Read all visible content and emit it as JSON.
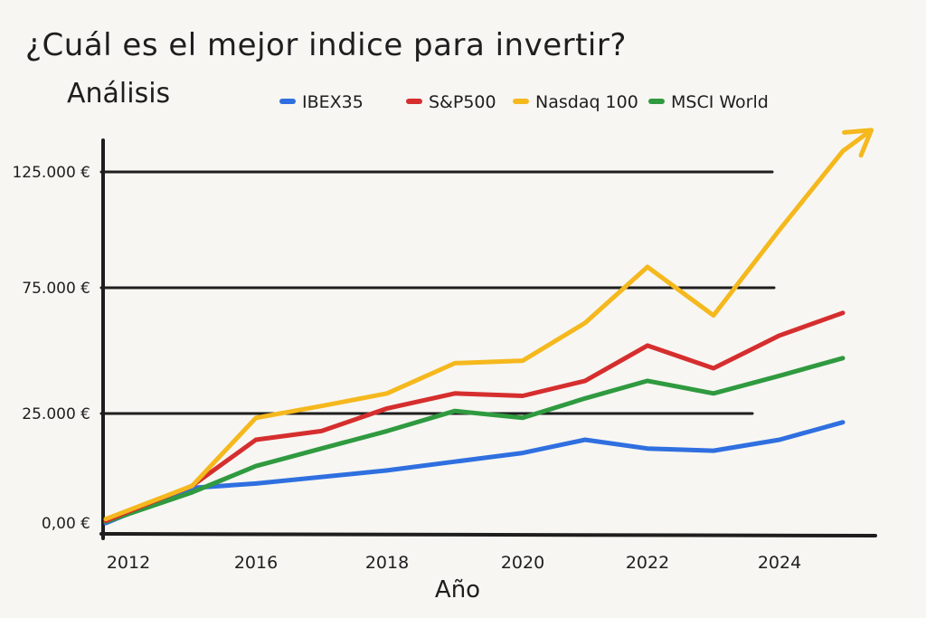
{
  "chart_data": {
    "type": "line",
    "title": "¿Cuál es el mejor indice para invertir?",
    "subtitle": "Análisis",
    "xlabel": "Año",
    "ylabel": "",
    "x_ticks": [
      "2012",
      "2016",
      "2018",
      "2020",
      "2022",
      "2024"
    ],
    "y_ticks": [
      "0,00 €",
      "25.000 €",
      "75.000 €",
      "125.000 €"
    ],
    "y_tick_values": [
      0,
      25000,
      75000,
      125000
    ],
    "xlim": [
      2011.5,
      2025.6
    ],
    "series": [
      {
        "name": "IBEX35",
        "color": "#2f6fe0",
        "x": [
          2011.5,
          2014,
          2016,
          2018,
          2019,
          2020,
          2021,
          2022,
          2023,
          2024,
          2025
        ],
        "y": [
          0,
          8000,
          9000,
          12000,
          14000,
          16000,
          19000,
          17000,
          16500,
          19000,
          23000
        ]
      },
      {
        "name": "S&P500",
        "color": "#d62e2e",
        "x": [
          2011.5,
          2014,
          2016,
          2017,
          2018,
          2019,
          2020,
          2021,
          2022,
          2023,
          2024,
          2025
        ],
        "y": [
          500,
          8500,
          19000,
          21000,
          27000,
          33000,
          32000,
          38000,
          52000,
          43000,
          56000,
          65000
        ]
      },
      {
        "name": "Nasdaq 100",
        "color": "#f5b81d",
        "x": [
          2011.5,
          2014,
          2016,
          2017,
          2018,
          2019,
          2020,
          2021,
          2022,
          2023,
          2024,
          2025,
          2025.45
        ],
        "y": [
          900,
          8500,
          24000,
          28000,
          33000,
          45000,
          46000,
          61000,
          84000,
          64000,
          100000,
          134000,
          143000
        ]
      },
      {
        "name": "MSCI World",
        "color": "#2f9a3f",
        "x": [
          2011.5,
          2014,
          2016,
          2017,
          2018,
          2019,
          2020,
          2021,
          2022,
          2023,
          2024,
          2025
        ],
        "y": [
          300,
          7000,
          13000,
          17000,
          21000,
          26000,
          24000,
          31000,
          38000,
          33000,
          40000,
          47000
        ]
      }
    ],
    "legend_position": "top"
  }
}
